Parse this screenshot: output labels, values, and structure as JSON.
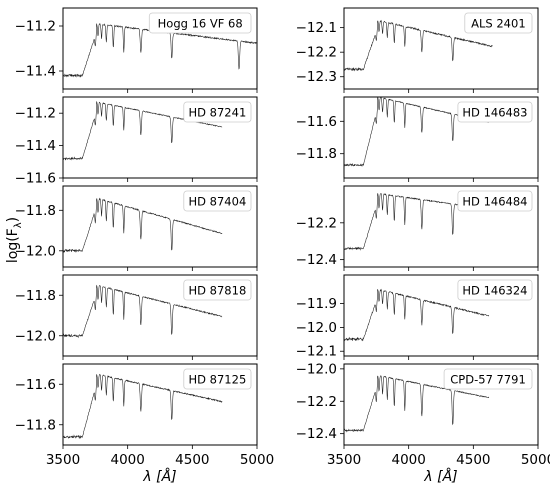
{
  "chart_data": {
    "type": "line",
    "xlabel": "λ [Å]",
    "ylabel": "log(Fλ)",
    "xlim": [
      3500,
      5000
    ],
    "xticks": [
      3500,
      4000,
      4500,
      5000
    ],
    "grid": false,
    "legend_placement": "top-right",
    "balmer_lines": [
      3750,
      3771,
      3798,
      3835,
      3889,
      3970,
      4102,
      4341,
      4861
    ],
    "panels": [
      {
        "star": "Hogg 16 VF 68",
        "ylim": [
          -11.48,
          -11.12
        ],
        "yticks": [
          -11.4,
          -11.2
        ],
        "x_end": 5000,
        "base": -11.42,
        "jump": 0.23,
        "slope": -0.07,
        "depth": 0.14,
        "line_depths": [
          0.35,
          0.4,
          0.45,
          0.55,
          0.7,
          0.8,
          0.75,
          0.8,
          0.9
        ]
      },
      {
        "star": "ALS 2401",
        "ylim": [
          -12.35,
          -12.02
        ],
        "yticks": [
          -12.3,
          -12.2,
          -12.1
        ],
        "x_end": 4650,
        "base": -12.27,
        "jump": 0.2,
        "slope": -0.12,
        "depth": 0.11,
        "line_depths": [
          0.35,
          0.4,
          0.45,
          0.55,
          0.7,
          0.75,
          0.8,
          0.85,
          0.0
        ]
      },
      {
        "star": "HD 87241",
        "ylim": [
          -11.6,
          -11.1
        ],
        "yticks": [
          -11.6,
          -11.4,
          -11.2
        ],
        "x_end": 4730,
        "base": -11.48,
        "jump": 0.35,
        "slope": -0.16,
        "depth": 0.19,
        "line_depths": [
          0.35,
          0.4,
          0.45,
          0.55,
          0.7,
          0.75,
          0.8,
          0.85,
          0.0
        ]
      },
      {
        "star": "HD 146483",
        "ylim": [
          -11.95,
          -11.45
        ],
        "yticks": [
          -11.8,
          -11.6
        ],
        "x_end": 4620,
        "base": -11.87,
        "jump": 0.42,
        "slope": -0.18,
        "depth": 0.2,
        "line_depths": [
          0.35,
          0.4,
          0.45,
          0.55,
          0.7,
          0.75,
          0.8,
          0.85,
          0.0
        ]
      },
      {
        "star": "HD 87404",
        "ylim": [
          -12.08,
          -11.68
        ],
        "yticks": [
          -12.0,
          -11.8
        ],
        "x_end": 4730,
        "base": -12.0,
        "jump": 0.26,
        "slope": -0.18,
        "depth": 0.18,
        "line_depths": [
          0.35,
          0.4,
          0.45,
          0.55,
          0.7,
          0.75,
          0.8,
          0.85,
          0.0
        ]
      },
      {
        "star": "HD 146484",
        "ylim": [
          -12.44,
          -12.0
        ],
        "yticks": [
          -12.4,
          -12.2
        ],
        "x_end": 4620,
        "base": -12.34,
        "jump": 0.3,
        "slope": -0.1,
        "depth": 0.2,
        "line_depths": [
          0.35,
          0.4,
          0.45,
          0.55,
          0.7,
          0.75,
          0.8,
          0.85,
          0.0
        ]
      },
      {
        "star": "HD 87818",
        "ylim": [
          -12.1,
          -11.7
        ],
        "yticks": [
          -12.0,
          -11.8
        ],
        "x_end": 4730,
        "base": -12.0,
        "jump": 0.25,
        "slope": -0.16,
        "depth": 0.18,
        "line_depths": [
          0.35,
          0.4,
          0.45,
          0.55,
          0.7,
          0.75,
          0.8,
          0.85,
          0.0
        ]
      },
      {
        "star": "HD 146324",
        "ylim": [
          -12.12,
          -11.78
        ],
        "yticks": [
          -12.1,
          -12.0,
          -11.9
        ],
        "x_end": 4620,
        "base": -12.05,
        "jump": 0.21,
        "slope": -0.13,
        "depth": 0.13,
        "line_depths": [
          0.35,
          0.4,
          0.45,
          0.55,
          0.7,
          0.75,
          0.8,
          0.85,
          0.0
        ]
      },
      {
        "star": "HD 87125",
        "ylim": [
          -11.9,
          -11.5
        ],
        "yticks": [
          -11.8,
          -11.6
        ],
        "x_end": 4730,
        "base": -11.86,
        "jump": 0.31,
        "slope": -0.14,
        "depth": 0.17,
        "line_depths": [
          0.35,
          0.4,
          0.45,
          0.55,
          0.7,
          0.75,
          0.8,
          0.85,
          0.0
        ]
      },
      {
        "star": "CPD-57 7791",
        "ylim": [
          -12.47,
          -11.97
        ],
        "yticks": [
          -12.4,
          -12.2,
          -12.0
        ],
        "x_end": 4620,
        "base": -12.38,
        "jump": 0.34,
        "slope": -0.16,
        "depth": 0.25,
        "line_depths": [
          0.35,
          0.4,
          0.45,
          0.55,
          0.7,
          0.75,
          0.8,
          0.85,
          0.0
        ]
      }
    ]
  }
}
